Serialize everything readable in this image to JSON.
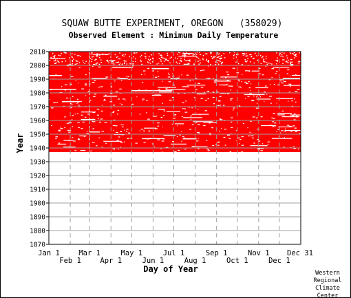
{
  "chart_data": {
    "type": "heatmap",
    "title": "SQUAW BUTTE EXPERIMENT, OREGON   (358029)",
    "subtitle": "Observed Element : Minimum Daily Temperature",
    "xlabel": "Day of Year",
    "ylabel": "Year",
    "ylim": [
      1870,
      2010
    ],
    "y_ticks": [
      1870,
      1880,
      1890,
      1900,
      1910,
      1920,
      1930,
      1940,
      1950,
      1960,
      1970,
      1980,
      1990,
      2000,
      2010
    ],
    "x_ticks_upper": [
      "Jan 1",
      "Mar 1",
      "May 1",
      "Jul 1",
      "Sep 1",
      "Nov 1",
      "Dec 31"
    ],
    "x_ticks_lower": [
      "Feb 1",
      "Apr 1",
      "Jun 1",
      "Aug 1",
      "Oct 1",
      "Dec 1"
    ],
    "record_start_year": 1937,
    "record_end_year": 2010,
    "data_color": "#ff0000",
    "grid": true,
    "credit": [
      "Western",
      "Regional",
      "Climate",
      "Center"
    ]
  }
}
